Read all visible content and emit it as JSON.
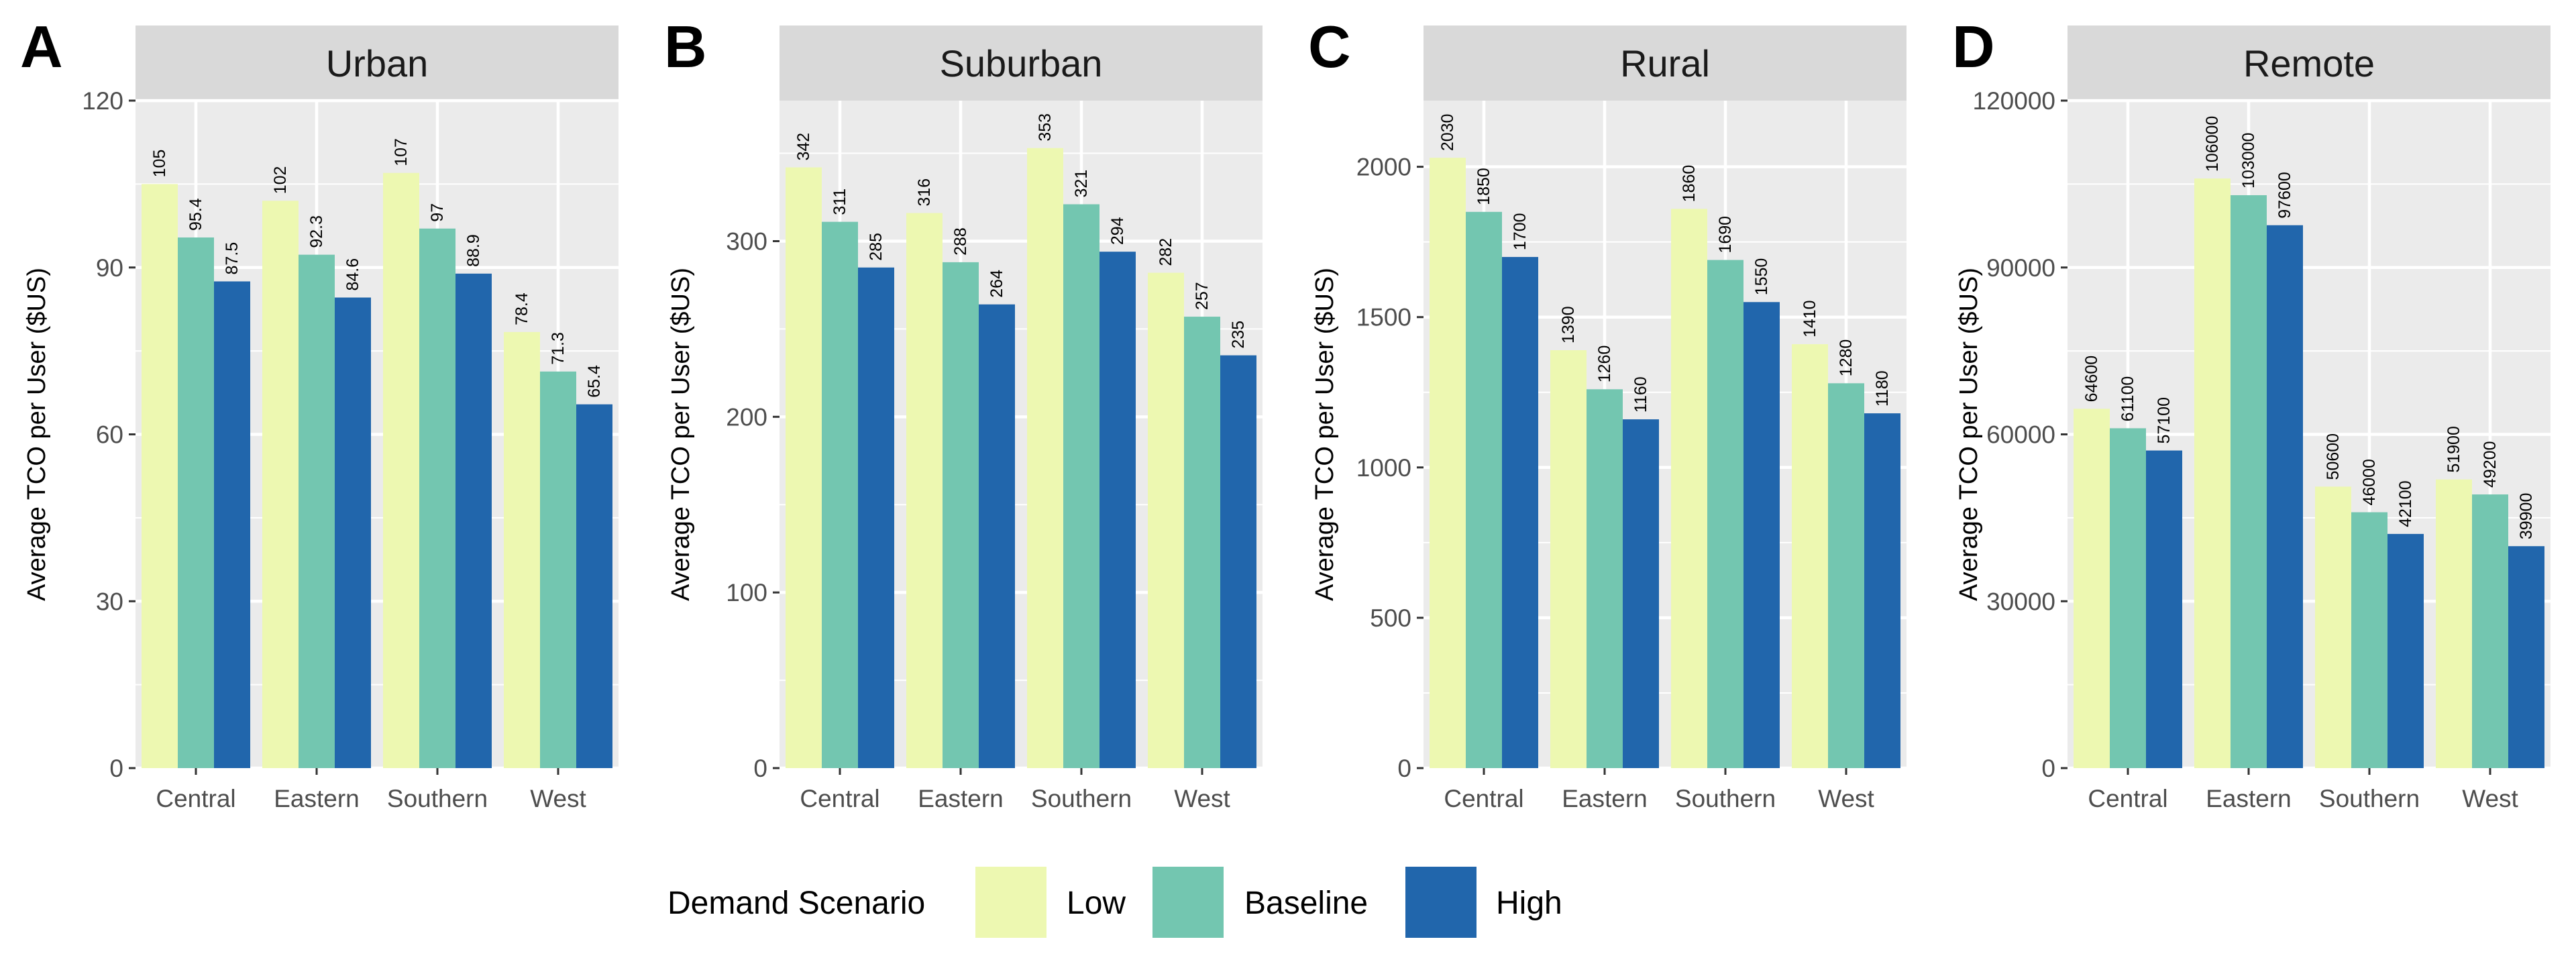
{
  "legend": {
    "title": "Demand Scenario",
    "items": [
      {
        "label": "Low",
        "color": "#edf8b1"
      },
      {
        "label": "Baseline",
        "color": "#73c6b0"
      },
      {
        "label": "High",
        "color": "#2166ac"
      }
    ]
  },
  "chart_data": [
    {
      "type": "bar",
      "panel": "A",
      "title": "Urban",
      "ylabel": "Average TCO per User ($US)",
      "xlabel": "",
      "categories": [
        "Central",
        "Eastern",
        "Southern",
        "West"
      ],
      "ylim": [
        0,
        120
      ],
      "yticks": [
        0,
        30,
        60,
        90,
        120
      ],
      "series": [
        {
          "name": "Low",
          "values": [
            105,
            102,
            107,
            78.4
          ],
          "labels": [
            "105",
            "102",
            "107",
            "78.4"
          ]
        },
        {
          "name": "Baseline",
          "values": [
            95.4,
            92.3,
            97,
            71.3
          ],
          "labels": [
            "95.4",
            "92.3",
            "97",
            "71.3"
          ]
        },
        {
          "name": "High",
          "values": [
            87.5,
            84.6,
            88.9,
            65.4
          ],
          "labels": [
            "87.5",
            "84.6",
            "88.9",
            "65.4"
          ]
        }
      ]
    },
    {
      "type": "bar",
      "panel": "B",
      "title": "Suburban",
      "ylabel": "Average TCO per User ($US)",
      "xlabel": "",
      "categories": [
        "Central",
        "Eastern",
        "Southern",
        "West"
      ],
      "ylim": [
        0,
        380
      ],
      "yticks": [
        0,
        100,
        200,
        300
      ],
      "series": [
        {
          "name": "Low",
          "values": [
            342,
            316,
            353,
            282
          ],
          "labels": [
            "342",
            "316",
            "353",
            "282"
          ]
        },
        {
          "name": "Baseline",
          "values": [
            311,
            288,
            321,
            257
          ],
          "labels": [
            "311",
            "288",
            "321",
            "257"
          ]
        },
        {
          "name": "High",
          "values": [
            285,
            264,
            294,
            235
          ],
          "labels": [
            "285",
            "264",
            "294",
            "235"
          ]
        }
      ]
    },
    {
      "type": "bar",
      "panel": "C",
      "title": "Rural",
      "ylabel": "Average TCO per User ($US)",
      "xlabel": "",
      "categories": [
        "Central",
        "Eastern",
        "Southern",
        "West"
      ],
      "ylim": [
        0,
        2220
      ],
      "yticks": [
        0,
        500,
        1000,
        1500,
        2000
      ],
      "series": [
        {
          "name": "Low",
          "values": [
            2030,
            1390,
            1860,
            1410
          ],
          "labels": [
            "2030",
            "1390",
            "1860",
            "1410"
          ]
        },
        {
          "name": "Baseline",
          "values": [
            1850,
            1260,
            1690,
            1280
          ],
          "labels": [
            "1850",
            "1260",
            "1690",
            "1280"
          ]
        },
        {
          "name": "High",
          "values": [
            1700,
            1160,
            1550,
            1180
          ],
          "labels": [
            "1700",
            "1160",
            "1550",
            "1180"
          ]
        }
      ]
    },
    {
      "type": "bar",
      "panel": "D",
      "title": "Remote",
      "ylabel": "Average TCO per User ($US)",
      "xlabel": "",
      "categories": [
        "Central",
        "Eastern",
        "Southern",
        "West"
      ],
      "ylim": [
        0,
        120000
      ],
      "yticks": [
        0,
        30000,
        60000,
        90000,
        120000
      ],
      "series": [
        {
          "name": "Low",
          "values": [
            64600,
            106000,
            50600,
            51900
          ],
          "labels": [
            "64600",
            "106000",
            "50600",
            "51900"
          ]
        },
        {
          "name": "Baseline",
          "values": [
            61100,
            103000,
            46000,
            49200
          ],
          "labels": [
            "61100",
            "103000",
            "46000",
            "49200"
          ]
        },
        {
          "name": "High",
          "values": [
            57100,
            97600,
            42100,
            39900
          ],
          "labels": [
            "57100",
            "97600",
            "42100",
            "39900"
          ]
        }
      ]
    }
  ]
}
